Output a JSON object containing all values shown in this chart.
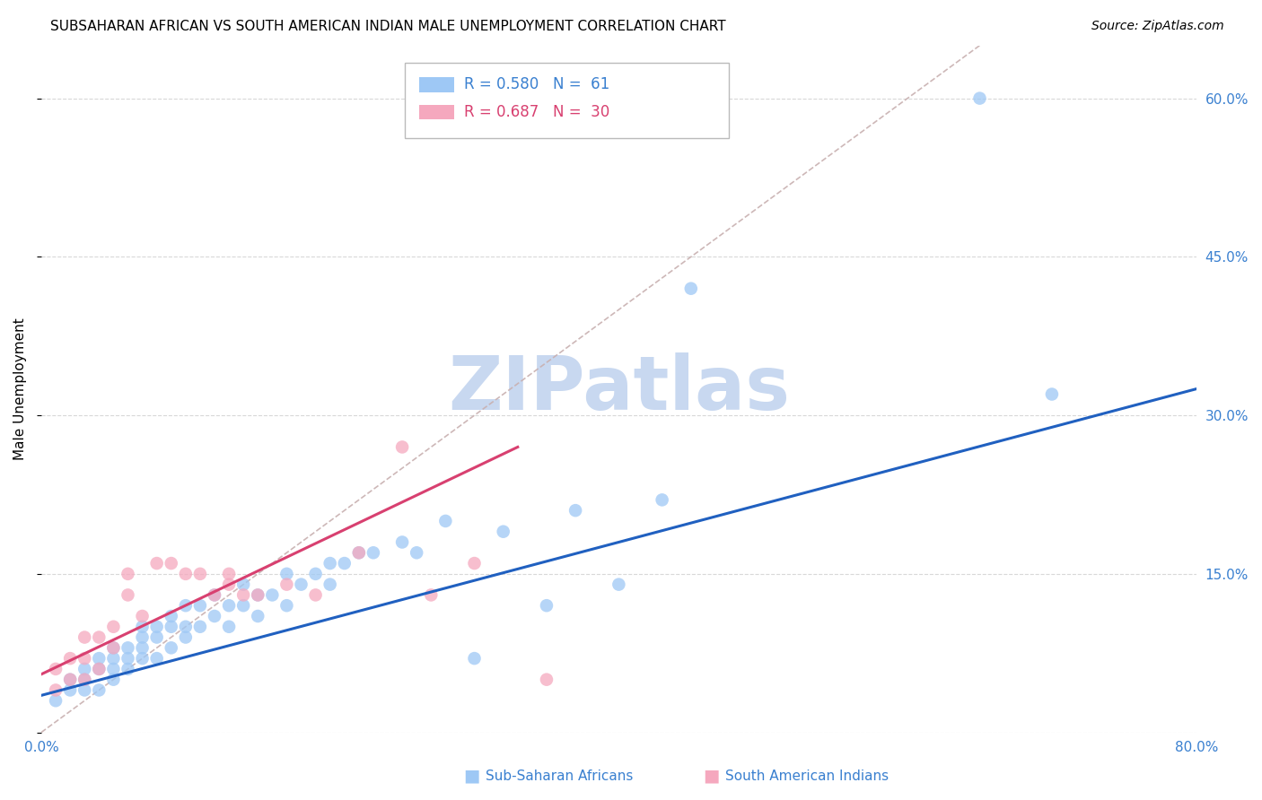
{
  "title": "SUBSAHARAN AFRICAN VS SOUTH AMERICAN INDIAN MALE UNEMPLOYMENT CORRELATION CHART",
  "source": "Source: ZipAtlas.com",
  "ylabel": "Male Unemployment",
  "xlim": [
    0.0,
    0.8
  ],
  "ylim": [
    0.0,
    0.65
  ],
  "x_ticks": [
    0.0,
    0.2,
    0.4,
    0.6,
    0.8
  ],
  "x_tick_labels": [
    "0.0%",
    "",
    "",
    "",
    "80.0%"
  ],
  "y_ticks": [
    0.0,
    0.15,
    0.3,
    0.45,
    0.6
  ],
  "y_tick_labels_right": [
    "",
    "15.0%",
    "30.0%",
    "45.0%",
    "60.0%"
  ],
  "legend_entries": [
    {
      "label": "Sub-Saharan Africans",
      "color": "#9ec8f5"
    },
    {
      "label": "South American Indians",
      "color": "#f5a8be"
    }
  ],
  "legend_r_n": [
    {
      "R": "0.580",
      "N": "61",
      "color": "#3a80d0"
    },
    {
      "R": "0.687",
      "N": "30",
      "color": "#d84070"
    }
  ],
  "blue_scatter_x": [
    0.01,
    0.02,
    0.02,
    0.03,
    0.03,
    0.03,
    0.04,
    0.04,
    0.04,
    0.05,
    0.05,
    0.05,
    0.05,
    0.06,
    0.06,
    0.06,
    0.07,
    0.07,
    0.07,
    0.07,
    0.08,
    0.08,
    0.08,
    0.09,
    0.09,
    0.09,
    0.1,
    0.1,
    0.1,
    0.11,
    0.11,
    0.12,
    0.12,
    0.13,
    0.13,
    0.14,
    0.14,
    0.15,
    0.15,
    0.16,
    0.17,
    0.17,
    0.18,
    0.19,
    0.2,
    0.2,
    0.21,
    0.22,
    0.23,
    0.25,
    0.26,
    0.28,
    0.3,
    0.32,
    0.35,
    0.37,
    0.4,
    0.43,
    0.45,
    0.65,
    0.7
  ],
  "blue_scatter_y": [
    0.03,
    0.04,
    0.05,
    0.04,
    0.05,
    0.06,
    0.04,
    0.06,
    0.07,
    0.05,
    0.06,
    0.07,
    0.08,
    0.06,
    0.07,
    0.08,
    0.07,
    0.08,
    0.09,
    0.1,
    0.07,
    0.09,
    0.1,
    0.08,
    0.1,
    0.11,
    0.09,
    0.1,
    0.12,
    0.1,
    0.12,
    0.11,
    0.13,
    0.1,
    0.12,
    0.12,
    0.14,
    0.11,
    0.13,
    0.13,
    0.12,
    0.15,
    0.14,
    0.15,
    0.14,
    0.16,
    0.16,
    0.17,
    0.17,
    0.18,
    0.17,
    0.2,
    0.07,
    0.19,
    0.12,
    0.21,
    0.14,
    0.22,
    0.42,
    0.6,
    0.32
  ],
  "pink_scatter_x": [
    0.01,
    0.01,
    0.02,
    0.02,
    0.03,
    0.03,
    0.03,
    0.04,
    0.04,
    0.05,
    0.05,
    0.06,
    0.06,
    0.07,
    0.08,
    0.09,
    0.1,
    0.11,
    0.12,
    0.13,
    0.13,
    0.14,
    0.15,
    0.17,
    0.19,
    0.22,
    0.25,
    0.27,
    0.3,
    0.35
  ],
  "pink_scatter_y": [
    0.04,
    0.06,
    0.05,
    0.07,
    0.05,
    0.07,
    0.09,
    0.06,
    0.09,
    0.08,
    0.1,
    0.13,
    0.15,
    0.11,
    0.16,
    0.16,
    0.15,
    0.15,
    0.13,
    0.14,
    0.15,
    0.13,
    0.13,
    0.14,
    0.13,
    0.17,
    0.27,
    0.13,
    0.16,
    0.05
  ],
  "blue_line_x": [
    0.0,
    0.8
  ],
  "blue_line_y": [
    0.035,
    0.325
  ],
  "pink_line_x": [
    0.0,
    0.33
  ],
  "pink_line_y": [
    0.055,
    0.27
  ],
  "diag_line_x": [
    0.0,
    0.65
  ],
  "diag_line_y": [
    0.0,
    0.65
  ],
  "scatter_color_blue": "#9ec8f5",
  "scatter_color_pink": "#f5a8be",
  "line_color_blue": "#2060c0",
  "line_color_pink": "#d84070",
  "diag_line_color": "#c8b0b0",
  "background_color": "#ffffff",
  "grid_color": "#d8d8d8",
  "title_fontsize": 11,
  "axis_label_fontsize": 11,
  "tick_fontsize": 11,
  "source_fontsize": 10,
  "legend_fontsize": 12,
  "watermark_text": "ZIPatlas",
  "watermark_color": "#c8d8f0",
  "watermark_fontsize": 60
}
